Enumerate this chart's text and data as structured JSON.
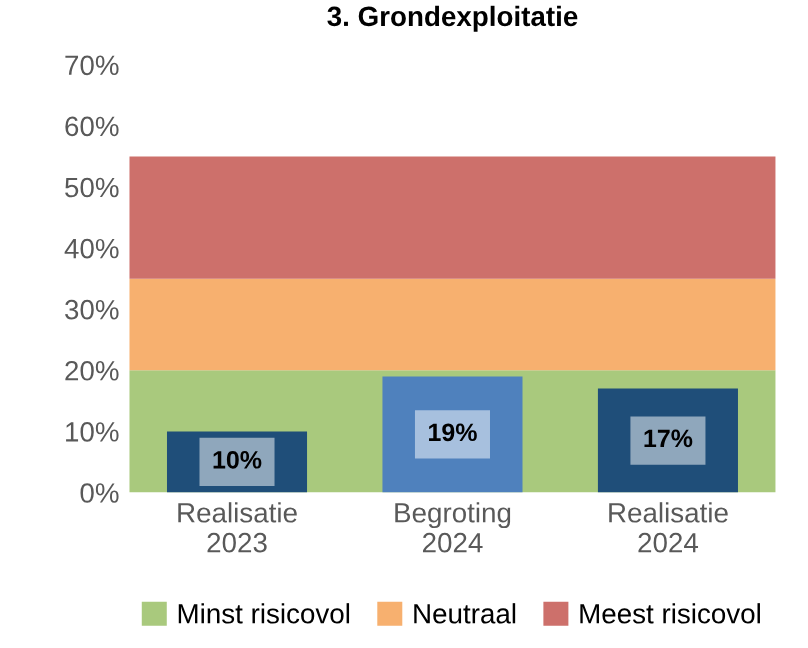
{
  "chart_data": {
    "type": "bar",
    "title": "3. Grondexploitatie",
    "categories": [
      "Realisatie\n2023",
      "Begroting\n2024",
      "Realisatie\n2024"
    ],
    "values": [
      10,
      19,
      17
    ],
    "colors": [
      "#1f4e79",
      "#4f81bd",
      "#1f4e79"
    ],
    "value_labels": [
      "10%",
      "19%",
      "17%"
    ],
    "ylim": [
      0,
      70
    ],
    "yticks": [
      {
        "value": 0,
        "label": "0%"
      },
      {
        "value": 10,
        "label": "10%"
      },
      {
        "value": 20,
        "label": "20%"
      },
      {
        "value": 30,
        "label": "30%"
      },
      {
        "value": 40,
        "label": "40%"
      },
      {
        "value": 50,
        "label": "50%"
      },
      {
        "value": 60,
        "label": "60%"
      },
      {
        "value": 70,
        "label": "70%"
      }
    ],
    "bands": [
      {
        "axis": "y",
        "from": 0,
        "to": 20,
        "label": "Minst risicovol",
        "color": "#a9c97d"
      },
      {
        "axis": "y",
        "from": 20,
        "to": 35,
        "label": "Neutraal",
        "color": "#f7b06f"
      },
      {
        "axis": "y",
        "from": 35,
        "to": 55,
        "label": "Meest risicovol",
        "color": "#cd706b"
      }
    ],
    "grid": false,
    "legend": "bottom"
  }
}
